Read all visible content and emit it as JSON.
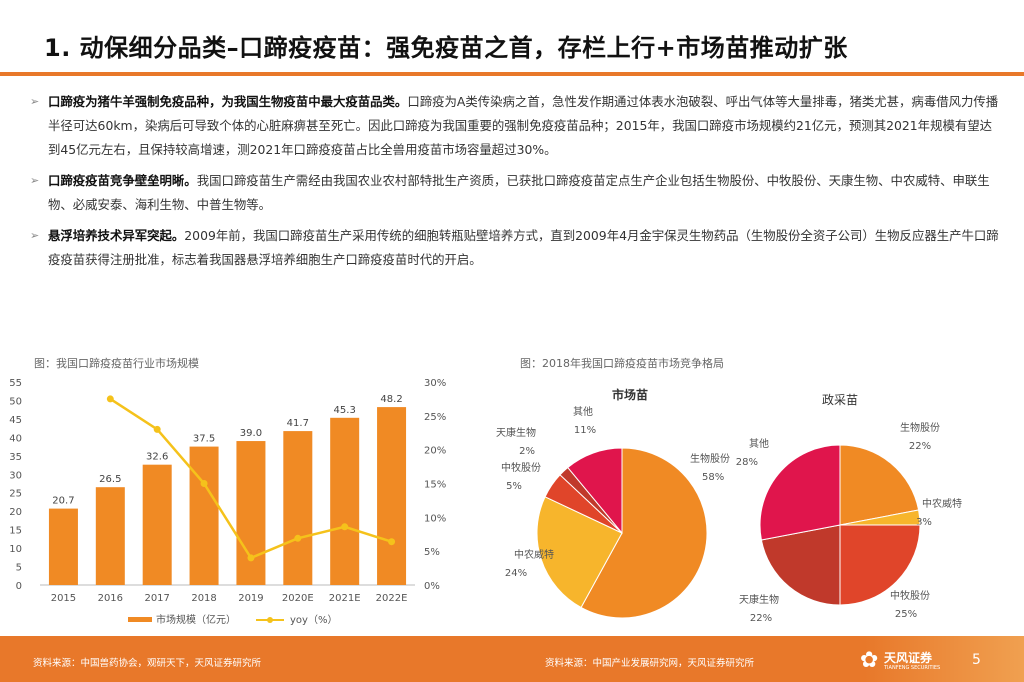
{
  "title": "1. 动保细分品类–口蹄疫疫苗：强免疫苗之首，存栏上行+市场苗推动扩张",
  "bullets": [
    {
      "bold": "口蹄疫为猪牛羊强制免疫品种，为我国生物疫苗中最大疫苗品类。",
      "text": "口蹄疫为A类传染病之首，急性发作期通过体表水泡破裂、呼出气体等大量排毒，猪类尤甚，病毒借风力传播半径可达60km，染病后可导致个体的心脏麻痹甚至死亡。因此口蹄疫为我国重要的强制免疫疫苗品种；2015年，我国口蹄疫市场规模约21亿元，预测其2021年规模有望达到45亿元左右，且保持较高增速，测2021年口蹄疫疫苗占比全兽用疫苗市场容量超过30%。"
    },
    {
      "bold": "口蹄疫疫苗竞争壁垒明晰。",
      "text": "我国口蹄疫苗生产需经由我国农业农村部特批生产资质，已获批口蹄疫疫苗定点生产企业包括生物股份、中牧股份、天康生物、中农威特、申联生物、必威安泰、海利生物、中普生物等。"
    },
    {
      "bold": "悬浮培养技术异军突起。",
      "text": "2009年前，我国口蹄疫苗生产采用传统的细胞转瓶贴壁培养方式，直到2009年4月金宇保灵生物药品（生物股份全资子公司）生物反应器生产牛口蹄疫疫苗获得注册批准，标志着我国器悬浮培养细胞生产口蹄疫疫苗时代的开启。"
    }
  ],
  "chart_left": {
    "caption": "图：我国口蹄疫疫苗行业市场规模",
    "legend_bar": "市场规模（亿元）",
    "legend_line": "yoy（%）"
  },
  "chart_right": {
    "caption": "图：2018年我国口蹄疫疫苗市场竞争格局",
    "pie1_title": "市场苗",
    "pie2_title": "政采苗"
  },
  "footer": {
    "source_left": "资料来源：中国兽药协会，观研天下，天风证券研究所",
    "source_right": "资料来源：中国产业发展研究网，天风证券研究所",
    "logo_name": "天风证券",
    "logo_sub": "TIANFENG SECURITIES",
    "page": "5"
  },
  "colors": {
    "accent": "#e8782a",
    "bar": "#f08a24",
    "line": "#f5c21b",
    "pie_orange": "#f08a24",
    "pie_yellow": "#f7b52c",
    "pie_red": "#e0452a",
    "pie_crimson": "#e0154c",
    "pie_darkred": "#c0392b"
  },
  "chart_data": [
    {
      "type": "bar",
      "title": "图：我国口蹄疫疫苗行业市场规模",
      "categories": [
        "2015",
        "2016",
        "2017",
        "2018",
        "2019",
        "2020E",
        "2021E",
        "2022E"
      ],
      "ylim": [
        0,
        55
      ],
      "yticks": [
        0,
        5,
        10,
        15,
        20,
        25,
        30,
        35,
        40,
        45,
        50,
        55
      ],
      "y2lim": [
        0,
        30
      ],
      "y2ticks": [
        "0%",
        "5%",
        "10%",
        "15%",
        "20%",
        "25%",
        "30%"
      ],
      "series": [
        {
          "name": "市场规模（亿元）",
          "type": "bar",
          "values": [
            20.7,
            26.5,
            32.6,
            37.5,
            39.0,
            41.7,
            45.3,
            48.2
          ],
          "labels": [
            "20.7",
            "26.5",
            "32.6",
            "37.5",
            "39.0",
            "41.7",
            "45.3",
            "48.2"
          ]
        },
        {
          "name": "yoy（%）",
          "type": "line",
          "axis": "right",
          "values": [
            null,
            27.5,
            23.0,
            15.0,
            4.0,
            6.9,
            8.6,
            6.4
          ]
        }
      ]
    },
    {
      "type": "pie",
      "title": "市场苗",
      "slices": [
        {
          "label": "生物股份",
          "value": 58,
          "pct": "58%",
          "color": "#f08a24"
        },
        {
          "label": "中农威特",
          "value": 24,
          "pct": "24%",
          "color": "#f7b52c"
        },
        {
          "label": "中牧股份",
          "value": 5,
          "pct": "5%",
          "color": "#e0452a"
        },
        {
          "label": "天康生物",
          "value": 2,
          "pct": "2%",
          "color": "#c0392b"
        },
        {
          "label": "其他",
          "value": 11,
          "pct": "11%",
          "color": "#e0154c"
        }
      ]
    },
    {
      "type": "pie",
      "title": "政采苗",
      "slices": [
        {
          "label": "生物股份",
          "value": 22,
          "pct": "22%",
          "color": "#f08a24"
        },
        {
          "label": "中农威特",
          "value": 3,
          "pct": "3%",
          "color": "#f7b52c"
        },
        {
          "label": "中牧股份",
          "value": 25,
          "pct": "25%",
          "color": "#e0452a"
        },
        {
          "label": "天康生物",
          "value": 22,
          "pct": "22%",
          "color": "#c0392b"
        },
        {
          "label": "其他",
          "value": 28,
          "pct": "28%",
          "color": "#e0154c"
        }
      ]
    }
  ]
}
